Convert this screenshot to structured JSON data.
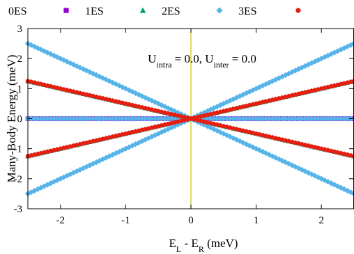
{
  "chart_data": {
    "type": "scatter",
    "xlabel": {
      "base": "E",
      "sub1": "L",
      "mid": " - E",
      "sub2": "R",
      "tail": " (meV)"
    },
    "ylabel": "Many-Body Energy (meV)",
    "annotation": {
      "p1": "U",
      "s1": "intra",
      "p2": " = 0.0, U",
      "s2": "inter",
      "p3": " = 0.0"
    },
    "xlim": [
      -2.5,
      2.5
    ],
    "ylim": [
      -3,
      3
    ],
    "xticks": [
      "-2",
      "-1",
      "0",
      "1",
      "2"
    ],
    "yticks": [
      "-3",
      "-2",
      "-1",
      "0",
      "1",
      "2",
      "3"
    ],
    "vertical_line_x": 0,
    "x_step": 0.05,
    "legend_position": "top, outside plot",
    "series": [
      {
        "name": "0ES",
        "color": "#9400d3",
        "marker": "square",
        "lines": [
          [
            0,
            0
          ]
        ]
      },
      {
        "name": "1ES",
        "color": "#009e73",
        "marker": "triangle",
        "lines": [
          [
            0.5,
            0
          ],
          [
            -0.5,
            0
          ]
        ]
      },
      {
        "name": "2ES",
        "color": "#56b4e9",
        "marker": "diamond",
        "lines": [
          [
            1,
            0
          ],
          [
            -1,
            0
          ],
          [
            0,
            0
          ]
        ]
      },
      {
        "name": "3ES",
        "color": "#e51e10",
        "marker": "circle",
        "lines": [
          [
            0.5,
            0
          ],
          [
            -0.5,
            0
          ]
        ]
      }
    ],
    "colors": {
      "vertical_line": "#c8c800",
      "axes": "#000000"
    }
  }
}
